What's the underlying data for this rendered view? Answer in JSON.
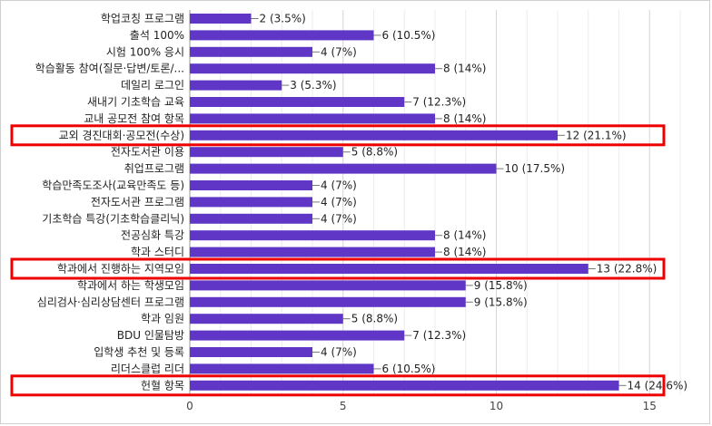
{
  "chart_data": {
    "type": "bar",
    "orientation": "horizontal",
    "bar_color": "#5f36c6",
    "highlight_color": "#ee0000",
    "xlim": [
      0,
      16
    ],
    "xticks": [
      0,
      5,
      10,
      15
    ],
    "grid": true,
    "categories": [
      "학업코칭 프로그램",
      "출석 100%",
      "시험 100% 응시",
      "학습활동 참여(질문·답변/토론/...",
      "데일리 로그인",
      "새내기 기초학습 교육",
      "교내 공모전 참여 항목",
      "교외 경진대회·공모전(수상)",
      "전자도서관 이용",
      "취업프로그램",
      "학습만족도조사(교육만족도 등)",
      "전자도서관 프로그램",
      "기초학습 특강(기초학습클리닉)",
      "전공심화 특강",
      "학과 스터디",
      "학과에서 진행하는 지역모임",
      "학과에서 하는 학생모임",
      "심리검사·심리상담센터 프로그램",
      "학과 임원",
      "BDU 인물탐방",
      "입학생 추천 및 등록",
      "리더스클럽 리더",
      "헌혈 항목"
    ],
    "values": [
      2,
      6,
      4,
      8,
      3,
      7,
      8,
      12,
      5,
      10,
      4,
      4,
      4,
      8,
      8,
      13,
      9,
      9,
      5,
      7,
      4,
      6,
      14
    ],
    "value_labels": [
      "2 (3.5%)",
      "6 (10.5%)",
      "4 (7%)",
      "8 (14%)",
      "3 (5.3%)",
      "7 (12.3%)",
      "8 (14%)",
      "12 (21.1%)",
      "5 (8.8%)",
      "10 (17.5%)",
      "4 (7%)",
      "4 (7%)",
      "4 (7%)",
      "8 (14%)",
      "8 (14%)",
      "13 (22.8%)",
      "9 (15.8%)",
      "9 (15.8%)",
      "5 (8.8%)",
      "7 (12.3%)",
      "4 (7%)",
      "6 (10.5%)",
      "14 (24.6%)"
    ],
    "highlighted": [
      "교외 경진대회·공모전(수상)",
      "학과에서 진행하는 지역모임",
      "헌혈 항목"
    ]
  }
}
